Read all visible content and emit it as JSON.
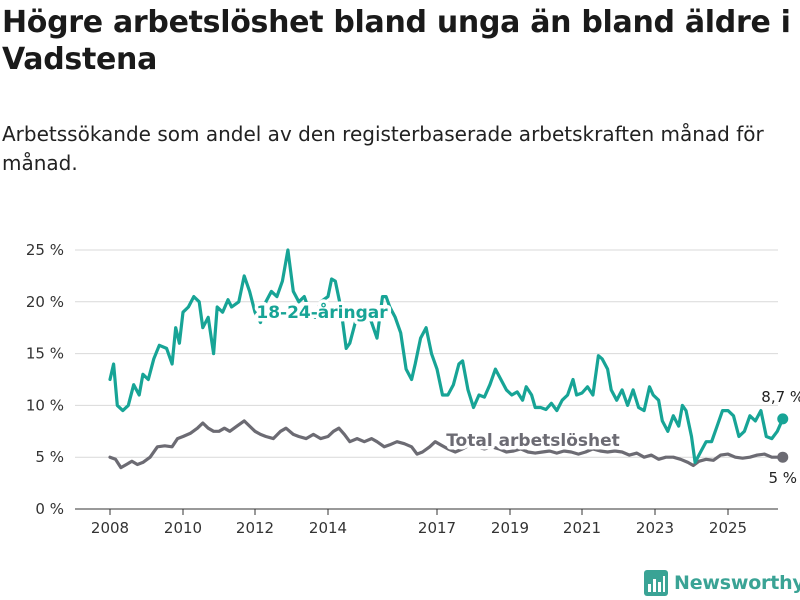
{
  "title": "Högre arbetslöshet bland unga än bland äldre i Vadstena",
  "subtitle": "Arbetssökande som andel av den registerbaserade arbetskraften månad för månad.",
  "brand": {
    "name": "Newsworthy",
    "icon": "bar-chart-logo-icon",
    "color": "#3aa395"
  },
  "chart_data": {
    "type": "line",
    "title": "",
    "xlabel": "",
    "ylabel": "",
    "ylim": [
      0,
      25
    ],
    "y_ticks": [
      0,
      5,
      10,
      15,
      20,
      25
    ],
    "y_tick_labels": [
      "0 %",
      "5 %",
      "10 %",
      "15 %",
      "20 %",
      "25 %"
    ],
    "x_ticks": [
      2008,
      2010,
      2012,
      2014,
      2017,
      2019,
      2021,
      2023,
      2025
    ],
    "x_tick_labels": [
      "2008",
      "2010",
      "2012",
      "2014",
      "2017",
      "2019",
      "2021",
      "2023",
      "2025"
    ],
    "grid": true,
    "series": [
      {
        "name": "18-24-åringar",
        "color": "#17a496",
        "end_label": "8,7 %",
        "points": [
          [
            2008.0,
            12.5
          ],
          [
            2008.1,
            14.0
          ],
          [
            2008.2,
            10.0
          ],
          [
            2008.35,
            9.5
          ],
          [
            2008.5,
            10.0
          ],
          [
            2008.65,
            12.0
          ],
          [
            2008.8,
            11.0
          ],
          [
            2008.9,
            13.0
          ],
          [
            2009.05,
            12.5
          ],
          [
            2009.2,
            14.5
          ],
          [
            2009.35,
            15.8
          ],
          [
            2009.55,
            15.5
          ],
          [
            2009.7,
            14.0
          ],
          [
            2009.8,
            17.5
          ],
          [
            2009.9,
            16.0
          ],
          [
            2010.0,
            19.0
          ],
          [
            2010.15,
            19.5
          ],
          [
            2010.3,
            20.5
          ],
          [
            2010.45,
            20.0
          ],
          [
            2010.55,
            17.5
          ],
          [
            2010.7,
            18.5
          ],
          [
            2010.85,
            15.0
          ],
          [
            2010.95,
            19.5
          ],
          [
            2011.1,
            19.0
          ],
          [
            2011.25,
            20.2
          ],
          [
            2011.35,
            19.5
          ],
          [
            2011.55,
            20.0
          ],
          [
            2011.7,
            22.5
          ],
          [
            2011.85,
            21.0
          ],
          [
            2012.0,
            19.0
          ],
          [
            2012.15,
            18.0
          ],
          [
            2012.3,
            20.0
          ],
          [
            2012.45,
            21.0
          ],
          [
            2012.6,
            20.5
          ],
          [
            2012.75,
            22.0
          ],
          [
            2012.9,
            25.0
          ],
          [
            2013.05,
            21.0
          ],
          [
            2013.2,
            20.0
          ],
          [
            2013.35,
            20.5
          ],
          [
            2013.5,
            19.0
          ],
          [
            2013.65,
            18.5
          ],
          [
            2013.8,
            20.0
          ],
          [
            2014.0,
            20.5
          ],
          [
            2014.1,
            22.2
          ],
          [
            2014.2,
            22.0
          ],
          [
            2014.35,
            19.5
          ],
          [
            2014.5,
            15.5
          ],
          [
            2014.6,
            16.0
          ],
          [
            2014.75,
            18.0
          ],
          [
            2014.9,
            19.5
          ],
          [
            2015.05,
            19.5
          ],
          [
            2015.2,
            18.0
          ],
          [
            2015.35,
            16.5
          ],
          [
            2015.5,
            20.5
          ],
          [
            2015.6,
            20.5
          ],
          [
            2015.7,
            19.5
          ],
          [
            2015.85,
            18.5
          ],
          [
            2016.0,
            17.0
          ],
          [
            2016.15,
            13.5
          ],
          [
            2016.3,
            12.5
          ],
          [
            2016.4,
            14.0
          ],
          [
            2016.55,
            16.5
          ],
          [
            2016.7,
            17.5
          ],
          [
            2016.85,
            15.0
          ],
          [
            2017.0,
            13.5
          ],
          [
            2017.15,
            11.0
          ],
          [
            2017.3,
            11.0
          ],
          [
            2017.45,
            12.0
          ],
          [
            2017.6,
            14.0
          ],
          [
            2017.7,
            14.3
          ],
          [
            2017.85,
            11.5
          ],
          [
            2018.0,
            9.8
          ],
          [
            2018.15,
            11.0
          ],
          [
            2018.3,
            10.8
          ],
          [
            2018.45,
            12.0
          ],
          [
            2018.6,
            13.5
          ],
          [
            2018.75,
            12.5
          ],
          [
            2018.9,
            11.5
          ],
          [
            2019.05,
            11.0
          ],
          [
            2019.2,
            11.3
          ],
          [
            2019.35,
            10.5
          ],
          [
            2019.45,
            11.8
          ],
          [
            2019.6,
            11.0
          ],
          [
            2019.7,
            9.8
          ],
          [
            2019.85,
            9.8
          ],
          [
            2020.0,
            9.6
          ],
          [
            2020.15,
            10.2
          ],
          [
            2020.3,
            9.5
          ],
          [
            2020.45,
            10.5
          ],
          [
            2020.6,
            11.0
          ],
          [
            2020.75,
            12.5
          ],
          [
            2020.85,
            11.0
          ],
          [
            2021.0,
            11.2
          ],
          [
            2021.15,
            11.8
          ],
          [
            2021.3,
            11.0
          ],
          [
            2021.45,
            14.8
          ],
          [
            2021.55,
            14.5
          ],
          [
            2021.7,
            13.5
          ],
          [
            2021.8,
            11.5
          ],
          [
            2021.95,
            10.5
          ],
          [
            2022.1,
            11.5
          ],
          [
            2022.25,
            10.0
          ],
          [
            2022.4,
            11.5
          ],
          [
            2022.55,
            9.8
          ],
          [
            2022.7,
            9.5
          ],
          [
            2022.85,
            11.8
          ],
          [
            2022.95,
            11.0
          ],
          [
            2023.1,
            10.5
          ],
          [
            2023.2,
            8.5
          ],
          [
            2023.35,
            7.5
          ],
          [
            2023.5,
            9.0
          ],
          [
            2023.65,
            8.0
          ],
          [
            2023.75,
            10.0
          ],
          [
            2023.85,
            9.5
          ],
          [
            2024.0,
            7.0
          ],
          [
            2024.1,
            4.5
          ],
          [
            2024.25,
            5.5
          ],
          [
            2024.4,
            6.5
          ],
          [
            2024.55,
            6.5
          ],
          [
            2024.7,
            8.0
          ],
          [
            2024.85,
            9.5
          ],
          [
            2025.0,
            9.5
          ],
          [
            2025.15,
            9.0
          ],
          [
            2025.3,
            7.0
          ],
          [
            2025.45,
            7.5
          ],
          [
            2025.6,
            9.0
          ],
          [
            2025.75,
            8.5
          ],
          [
            2025.9,
            9.5
          ],
          [
            2026.05,
            7.0
          ],
          [
            2026.2,
            6.8
          ],
          [
            2026.35,
            7.5
          ],
          [
            2026.5,
            8.7
          ]
        ]
      },
      {
        "name": "Total arbetslöshet",
        "color": "#6c6b73",
        "end_label": "5 %",
        "points": [
          [
            2008.0,
            5.0
          ],
          [
            2008.15,
            4.8
          ],
          [
            2008.3,
            4.0
          ],
          [
            2008.45,
            4.3
          ],
          [
            2008.6,
            4.6
          ],
          [
            2008.75,
            4.3
          ],
          [
            2008.9,
            4.5
          ],
          [
            2009.1,
            5.0
          ],
          [
            2009.3,
            6.0
          ],
          [
            2009.5,
            6.1
          ],
          [
            2009.7,
            6.0
          ],
          [
            2009.85,
            6.8
          ],
          [
            2010.0,
            7.0
          ],
          [
            2010.2,
            7.3
          ],
          [
            2010.4,
            7.8
          ],
          [
            2010.55,
            8.3
          ],
          [
            2010.7,
            7.8
          ],
          [
            2010.85,
            7.5
          ],
          [
            2011.0,
            7.5
          ],
          [
            2011.15,
            7.8
          ],
          [
            2011.3,
            7.5
          ],
          [
            2011.5,
            8.0
          ],
          [
            2011.7,
            8.5
          ],
          [
            2011.85,
            8.0
          ],
          [
            2012.0,
            7.5
          ],
          [
            2012.15,
            7.2
          ],
          [
            2012.3,
            7.0
          ],
          [
            2012.5,
            6.8
          ],
          [
            2012.7,
            7.5
          ],
          [
            2012.85,
            7.8
          ],
          [
            2013.05,
            7.2
          ],
          [
            2013.2,
            7.0
          ],
          [
            2013.4,
            6.8
          ],
          [
            2013.6,
            7.2
          ],
          [
            2013.8,
            6.8
          ],
          [
            2014.0,
            7.0
          ],
          [
            2014.15,
            7.5
          ],
          [
            2014.3,
            7.8
          ],
          [
            2014.45,
            7.2
          ],
          [
            2014.6,
            6.5
          ],
          [
            2014.8,
            6.8
          ],
          [
            2015.0,
            6.5
          ],
          [
            2015.2,
            6.8
          ],
          [
            2015.35,
            6.5
          ],
          [
            2015.55,
            6.0
          ],
          [
            2015.7,
            6.2
          ],
          [
            2015.9,
            6.5
          ],
          [
            2016.1,
            6.3
          ],
          [
            2016.3,
            6.0
          ],
          [
            2016.45,
            5.3
          ],
          [
            2016.6,
            5.5
          ],
          [
            2016.8,
            6.0
          ],
          [
            2016.95,
            6.5
          ],
          [
            2017.1,
            6.2
          ],
          [
            2017.3,
            5.8
          ],
          [
            2017.5,
            5.5
          ],
          [
            2017.7,
            5.8
          ],
          [
            2017.9,
            6.2
          ],
          [
            2018.1,
            6.0
          ],
          [
            2018.3,
            5.8
          ],
          [
            2018.5,
            6.0
          ],
          [
            2018.7,
            5.8
          ],
          [
            2018.9,
            5.5
          ],
          [
            2019.1,
            5.6
          ],
          [
            2019.3,
            5.8
          ],
          [
            2019.5,
            5.5
          ],
          [
            2019.7,
            5.4
          ],
          [
            2019.9,
            5.5
          ],
          [
            2020.1,
            5.6
          ],
          [
            2020.3,
            5.4
          ],
          [
            2020.5,
            5.6
          ],
          [
            2020.7,
            5.5
          ],
          [
            2020.9,
            5.3
          ],
          [
            2021.1,
            5.5
          ],
          [
            2021.3,
            5.8
          ],
          [
            2021.5,
            5.6
          ],
          [
            2021.7,
            5.5
          ],
          [
            2021.9,
            5.6
          ],
          [
            2022.1,
            5.5
          ],
          [
            2022.3,
            5.2
          ],
          [
            2022.5,
            5.4
          ],
          [
            2022.7,
            5.0
          ],
          [
            2022.9,
            5.2
          ],
          [
            2023.1,
            4.8
          ],
          [
            2023.3,
            5.0
          ],
          [
            2023.5,
            5.0
          ],
          [
            2023.7,
            4.8
          ],
          [
            2023.9,
            4.5
          ],
          [
            2024.05,
            4.2
          ],
          [
            2024.2,
            4.6
          ],
          [
            2024.4,
            4.8
          ],
          [
            2024.6,
            4.7
          ],
          [
            2024.8,
            5.2
          ],
          [
            2025.0,
            5.3
          ],
          [
            2025.2,
            5.0
          ],
          [
            2025.4,
            4.9
          ],
          [
            2025.6,
            5.0
          ],
          [
            2025.8,
            5.2
          ],
          [
            2026.0,
            5.3
          ],
          [
            2026.2,
            5.0
          ],
          [
            2026.5,
            5.0
          ]
        ]
      }
    ]
  }
}
